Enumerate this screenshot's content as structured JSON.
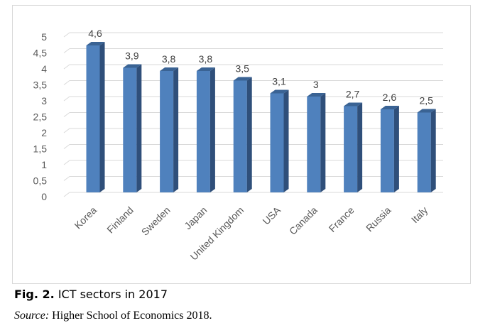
{
  "chart_data": {
    "type": "bar",
    "categories": [
      "Korea",
      "Finland",
      "Sweden",
      "Japan",
      "United Kingdom",
      "USA",
      "Canada",
      "France",
      "Russia",
      "Italy"
    ],
    "values": [
      4.6,
      3.9,
      3.8,
      3.8,
      3.5,
      3.1,
      3.0,
      2.7,
      2.6,
      2.5
    ],
    "data_labels": [
      "4,6",
      "3,9",
      "3,8",
      "3,8",
      "3,5",
      "3,1",
      "3",
      "2,7",
      "2,6",
      "2,5"
    ],
    "ytick_labels": [
      "0",
      "0,5",
      "1",
      "1,5",
      "2",
      "2,5",
      "3",
      "3,5",
      "4",
      "4,5",
      "5"
    ],
    "ylim": [
      0,
      5
    ],
    "grid": true,
    "bar_color": "#4f81bd",
    "bar_side_color": "#2f4f7a",
    "bar_top_color": "#3a6394",
    "title": "",
    "xlabel": "",
    "ylabel": ""
  },
  "caption": {
    "label": "Fig. 2.",
    "text": " ICT sectors in 2017"
  },
  "source": {
    "label": "Source:",
    "text": " Higher School of Economics 2018."
  }
}
